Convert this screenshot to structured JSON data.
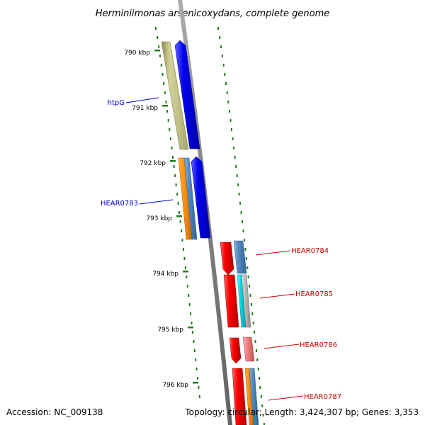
{
  "title": "Herminiimonas arsenicoxydans, complete genome",
  "footer": {
    "accession": "Accession: NC_009138",
    "topology": "Topology: circular; Length: 3,424,307 bp; Genes: 3,353"
  },
  "colors": {
    "backbone": "#8c8c8c",
    "ruler": "#1e7d1e",
    "label_blue": "#0000cc",
    "label_red": "#cc0000"
  },
  "ruler": {
    "kbp_labels": [
      "790 kbp",
      "791 kbp",
      "792 kbp",
      "793 kbp",
      "794 kbp",
      "795 kbp",
      "796 kbp"
    ]
  },
  "gene_labels": [
    {
      "name": "htpG",
      "color": "#0000cc"
    },
    {
      "name": "HEAR0783",
      "color": "#0000cc"
    },
    {
      "name": "HEAR0784",
      "color": "#cc0000"
    },
    {
      "name": "HEAR0785",
      "color": "#cc0000"
    },
    {
      "name": "HEAR0786",
      "color": "#cc0000"
    },
    {
      "name": "HEAR0787",
      "color": "#cc0000"
    }
  ]
}
